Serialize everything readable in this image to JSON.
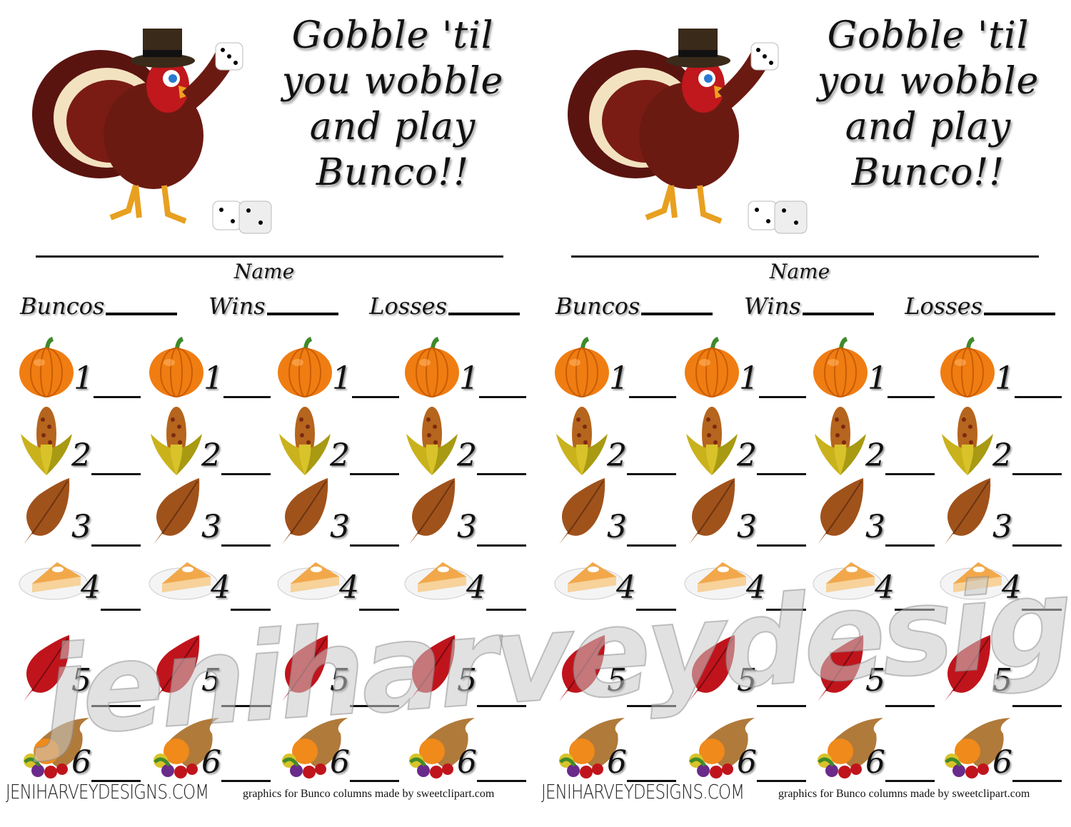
{
  "cards": [
    {
      "title_lines": [
        "Gobble 'til",
        "you wobble",
        "and play",
        "Bunco!!"
      ],
      "name_label": "Name",
      "stats": [
        "Buncos",
        "Wins",
        "Losses"
      ],
      "footer_brand": "JENIHARVEYDESIGNS.COM",
      "footer_credit": "graphics for Bunco columns made by sweetclipart.com"
    },
    {
      "title_lines": [
        "Gobble 'til",
        "you wobble",
        "and play",
        "Bunco!!"
      ],
      "name_label": "Name",
      "stats": [
        "Buncos",
        "Wins",
        "Losses"
      ],
      "footer_brand": "JENIHARVEYDESIGNS.COM",
      "footer_credit": "graphics for Bunco columns made by sweetclipart.com"
    }
  ],
  "rounds": [
    {
      "number": "1",
      "icon": "pumpkin-icon"
    },
    {
      "number": "2",
      "icon": "corn-icon"
    },
    {
      "number": "3",
      "icon": "brown-leaf-icon"
    },
    {
      "number": "4",
      "icon": "pie-icon"
    },
    {
      "number": "5",
      "icon": "red-leaf-icon"
    },
    {
      "number": "6",
      "icon": "cornucopia-icon"
    }
  ],
  "columns_per_card": 4,
  "watermark": "jeniharveydesigns.com",
  "colors": {
    "pumpkin": "#f07d12",
    "leaf_brown": "#a0521b",
    "leaf_red": "#c0141c",
    "turkey": "#6b1a12"
  }
}
